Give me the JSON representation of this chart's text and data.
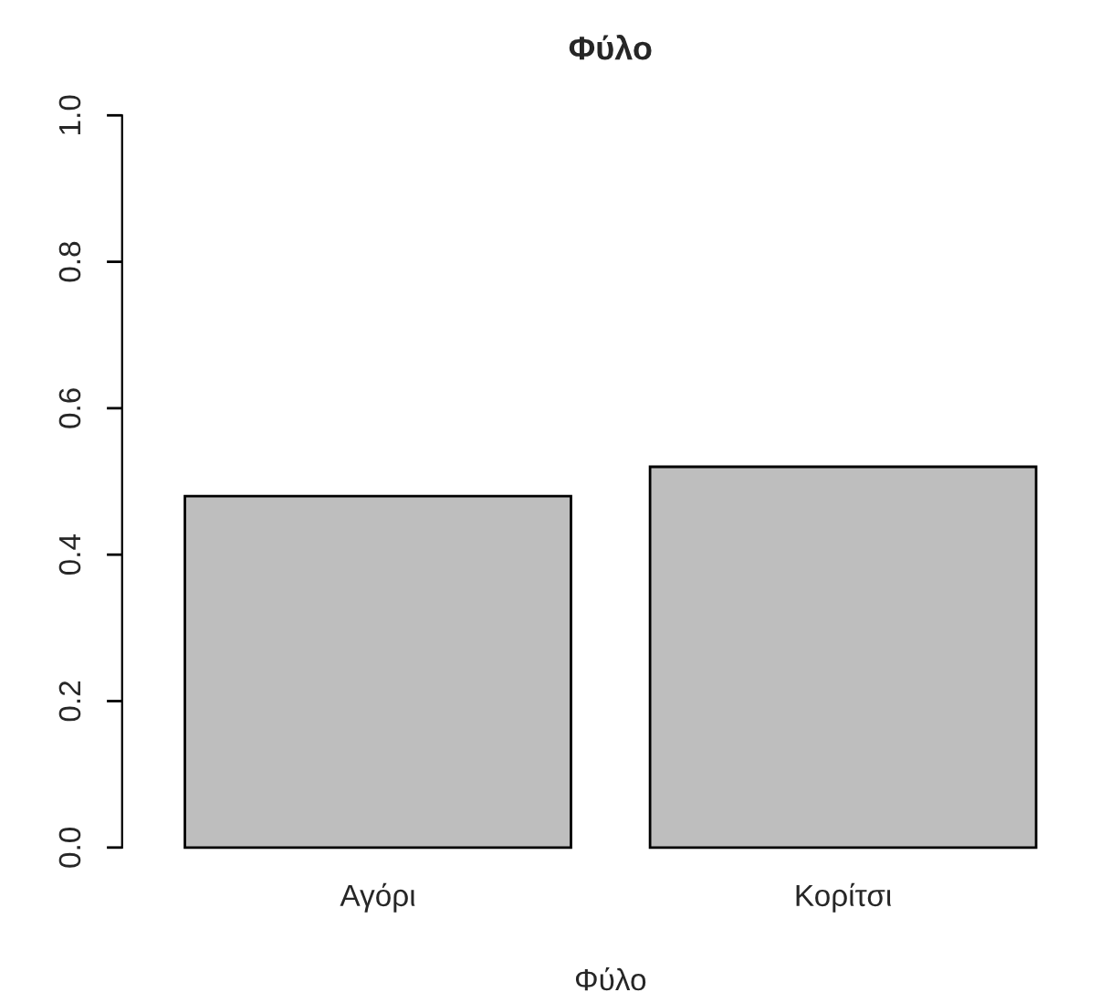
{
  "chart_data": {
    "type": "bar",
    "title": "Φύλο",
    "xlabel": "Φύλο",
    "categories": [
      "Αγόρι",
      "Κορίτσι"
    ],
    "values": [
      0.48,
      0.52
    ],
    "color": "#bebebe",
    "ylim": [
      0,
      1
    ],
    "yticks": [
      {
        "value": 0,
        "label": "0.0"
      },
      {
        "value": 0.2,
        "label": "0.2"
      },
      {
        "value": 0.4,
        "label": "0.4"
      },
      {
        "value": 0.6,
        "label": "0.6"
      },
      {
        "value": 0.8,
        "label": "0.8"
      },
      {
        "value": 1,
        "label": "1.0"
      }
    ],
    "grid": false,
    "legend": false
  }
}
